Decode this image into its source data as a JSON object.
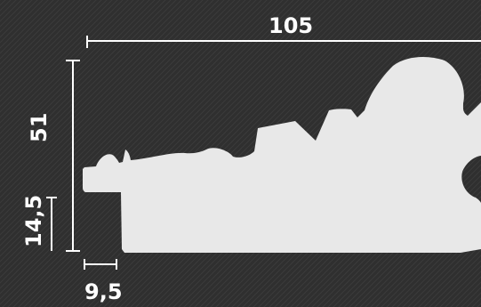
{
  "dimensions": {
    "overall_width": "105",
    "overall_height": "51",
    "lip_height": "14,5",
    "lip_width": "9,5"
  },
  "colors": {
    "background": "#2f2f2f",
    "profile_fill": "#e8e8e8",
    "dimension_lines": "#ffffff",
    "labels": "#ffffff"
  }
}
